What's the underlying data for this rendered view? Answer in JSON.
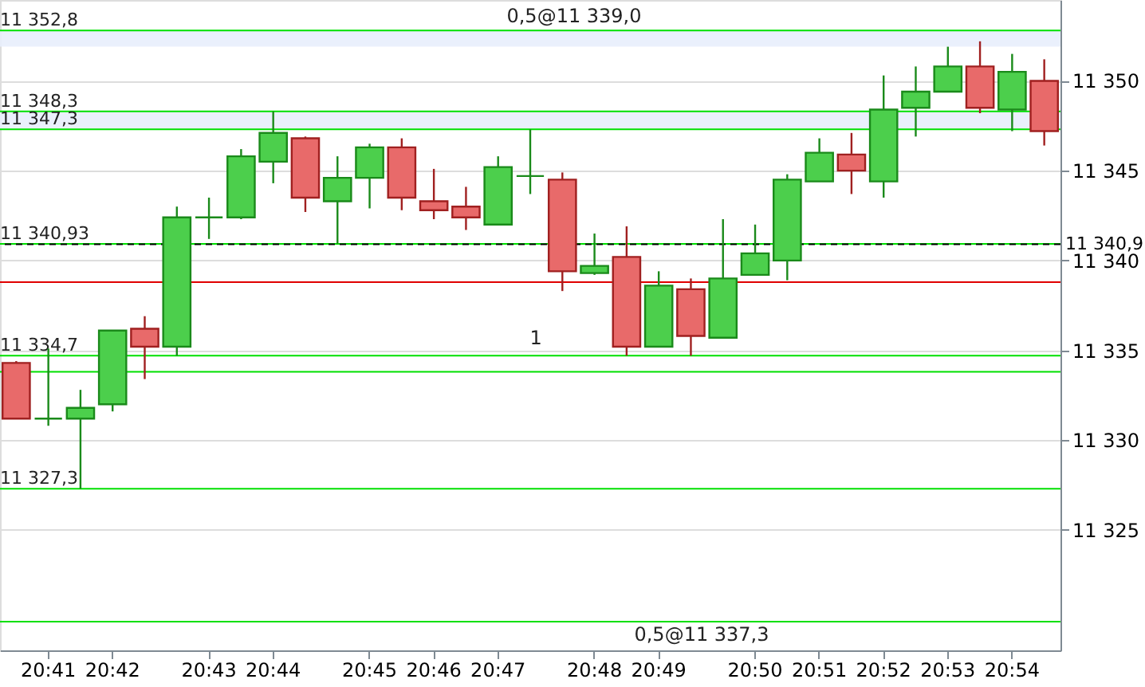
{
  "chart_data": {
    "type": "candlestick",
    "categories": [
      null,
      "20:41",
      null,
      "20:42",
      null,
      null,
      "20:43",
      null,
      "20:44",
      null,
      null,
      "20:45",
      null,
      "20:46",
      null,
      "20:47",
      null,
      null,
      "20:48",
      null,
      "20:49",
      null,
      null,
      "20:50",
      null,
      "20:51",
      null,
      "20:52",
      null,
      "20:53",
      null,
      "20:54",
      null
    ],
    "ohlc": [
      [
        11334.3,
        11334.4,
        11331.2,
        11331.2
      ],
      [
        11331.2,
        11335.1,
        11330.8,
        11331.2
      ],
      [
        11331.2,
        11332.8,
        11327.3,
        11331.8
      ],
      [
        11332.0,
        11336.1,
        11331.6,
        11336.1
      ],
      [
        11336.2,
        11336.9,
        11333.4,
        11335.2
      ],
      [
        11335.2,
        11343.0,
        11334.7,
        11342.4
      ],
      [
        11342.4,
        11343.5,
        11341.2,
        11342.4
      ],
      [
        11342.4,
        11346.2,
        11342.3,
        11345.8
      ],
      [
        11345.5,
        11348.3,
        11344.3,
        11347.1
      ],
      [
        11346.8,
        11346.9,
        11342.7,
        11343.5
      ],
      [
        11343.3,
        11345.8,
        11340.93,
        11344.6
      ],
      [
        11344.6,
        11346.5,
        11342.9,
        11346.3
      ],
      [
        11346.3,
        11346.8,
        11342.8,
        11343.5
      ],
      [
        11343.3,
        11345.1,
        11342.3,
        11342.8
      ],
      [
        11343.0,
        11344.1,
        11341.7,
        11342.4
      ],
      [
        11342.0,
        11345.8,
        11342.0,
        11345.2
      ],
      [
        11344.7,
        11347.3,
        11343.7,
        11344.7
      ],
      [
        11344.5,
        11344.9,
        11338.3,
        11339.4
      ],
      [
        11339.3,
        11341.5,
        11339.2,
        11339.7
      ],
      [
        11340.2,
        11341.9,
        11334.7,
        11335.2
      ],
      [
        11335.2,
        11339.4,
        11335.2,
        11338.6
      ],
      [
        11338.4,
        11339.0,
        11334.7,
        11335.8
      ],
      [
        11335.7,
        11342.3,
        11335.7,
        11339.0
      ],
      [
        11339.2,
        11342.0,
        11339.2,
        11340.4
      ],
      [
        11340.0,
        11344.8,
        11338.9,
        11344.5
      ],
      [
        11344.4,
        11346.8,
        11344.4,
        11346.0
      ],
      [
        11345.9,
        11347.1,
        11343.7,
        11345.0
      ],
      [
        11344.4,
        11350.3,
        11343.5,
        11348.4
      ],
      [
        11348.5,
        11350.8,
        11346.9,
        11349.4
      ],
      [
        11349.4,
        11351.9,
        11349.4,
        11350.8
      ],
      [
        11350.8,
        11352.2,
        11348.2,
        11348.5
      ],
      [
        11348.4,
        11351.5,
        11347.2,
        11350.5
      ],
      [
        11350.0,
        11351.2,
        11346.4,
        11347.2
      ]
    ],
    "ylim": [
      11318.3,
      11354.5
    ],
    "yticks": [
      11325,
      11330,
      11335,
      11340,
      11345,
      11350
    ],
    "grid": "y",
    "ref_lines": [
      {
        "axis": "y",
        "value": 11352.8,
        "label": "11 352,8",
        "color": "#00e000"
      },
      {
        "axis": "y",
        "value": 11348.3,
        "label": "11 348,3",
        "color": "#00e000"
      },
      {
        "axis": "y",
        "value": 11347.3,
        "label": "11 347,3",
        "color": "#00e000"
      },
      {
        "axis": "y",
        "value": 11340.93,
        "label": "11 340,93",
        "color": "#00e000"
      },
      {
        "axis": "y",
        "value": 11340.9,
        "label": "11 340,9",
        "color": "#000000",
        "line_style": "dashed"
      },
      {
        "axis": "y",
        "value": 11338.8,
        "color": "#e00000"
      },
      {
        "axis": "y",
        "value": 11334.7,
        "label": "11 334,7",
        "color": "#00e000"
      },
      {
        "axis": "y",
        "value": 11333.8,
        "color": "#00e000"
      },
      {
        "axis": "y",
        "value": 11327.3,
        "label": "11 327,3",
        "color": "#00e000"
      },
      {
        "axis": "y",
        "value": 11319.9,
        "color": "#00e000"
      }
    ],
    "bands": [
      {
        "axis": "y",
        "from": 11347.3,
        "to": 11348.3,
        "color": "#e8eefc"
      },
      {
        "axis": "y",
        "from": 11351.9,
        "to": 11352.8,
        "color": "#e8eefc"
      }
    ],
    "annotations": [
      "0,5@11 339,0",
      "0,5@11 337,3",
      "1"
    ]
  }
}
